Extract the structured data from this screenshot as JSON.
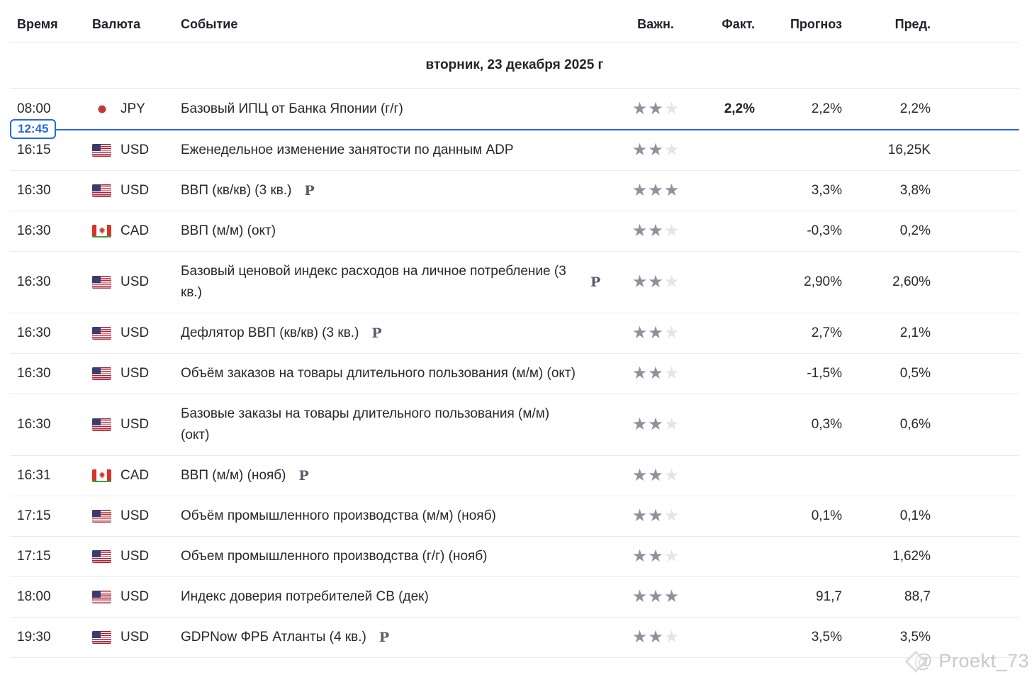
{
  "header": {
    "time": "Время",
    "currency": "Валюта",
    "event": "Событие",
    "importance": "Важн.",
    "actual": "Факт.",
    "forecast": "Прогноз",
    "previous": "Пред."
  },
  "date_header": "вторник, 23 декабря 2025 г",
  "time_marker": {
    "label": "12:45",
    "after_row": 1
  },
  "watermark": {
    "text": "@ Proekt_73"
  },
  "icons": {
    "preliminary": "P",
    "star": "★",
    "diamond": "watermark-diamond"
  },
  "colors": {
    "accent_blue": "#2368e4",
    "star_on": "#8d929c",
    "star_off": "#e3e5e9",
    "jpy_red": "#c4383d",
    "us_flag_red": "#b22234",
    "us_flag_blue": "#3c3b6e",
    "cad_red": "#d6342b",
    "cad_green": "#3f9e3f",
    "row_border": "#e8eaee",
    "text": "#24282f",
    "watermark_gray": "#c7c9cc"
  },
  "rows": [
    {
      "time": "08:00",
      "currency": "JPY",
      "flag": "jp",
      "event": "Базовый ИПЦ от Банка Японии (г/г)",
      "preliminary": false,
      "importance": 2,
      "actual": "2,2%",
      "forecast": "2,2%",
      "previous": "2,2%"
    },
    {
      "time": "16:15",
      "currency": "USD",
      "flag": "us",
      "event": "Еженедельное изменение занятости по данным ADP",
      "preliminary": false,
      "importance": 2,
      "actual": "",
      "forecast": "",
      "previous": "16,25K"
    },
    {
      "time": "16:30",
      "currency": "USD",
      "flag": "us",
      "event": "ВВП (кв/кв) (3 кв.)",
      "preliminary": true,
      "importance": 3,
      "actual": "",
      "forecast": "3,3%",
      "previous": "3,8%"
    },
    {
      "time": "16:30",
      "currency": "CAD",
      "flag": "ca",
      "event": "ВВП (м/м) (окт)",
      "preliminary": false,
      "importance": 2,
      "actual": "",
      "forecast": "-0,3%",
      "previous": "0,2%"
    },
    {
      "time": "16:30",
      "currency": "USD",
      "flag": "us",
      "event": "Базовый ценовой индекс расходов на личное потребление  (3 кв.)",
      "preliminary": true,
      "importance": 2,
      "actual": "",
      "forecast": "2,90%",
      "previous": "2,60%"
    },
    {
      "time": "16:30",
      "currency": "USD",
      "flag": "us",
      "event": "Дефлятор ВВП (кв/кв) (3 кв.)",
      "preliminary": true,
      "importance": 2,
      "actual": "",
      "forecast": "2,7%",
      "previous": "2,1%"
    },
    {
      "time": "16:30",
      "currency": "USD",
      "flag": "us",
      "event": "Объём заказов на товары длительного пользования (м/м) (окт)",
      "preliminary": false,
      "importance": 2,
      "actual": "",
      "forecast": "-1,5%",
      "previous": "0,5%"
    },
    {
      "time": "16:30",
      "currency": "USD",
      "flag": "us",
      "event": "Базовые заказы на товары длительного пользования (м/м) (окт)",
      "preliminary": false,
      "importance": 2,
      "actual": "",
      "forecast": "0,3%",
      "previous": "0,6%"
    },
    {
      "time": "16:31",
      "currency": "CAD",
      "flag": "ca",
      "event": "ВВП (м/м) (нояб)",
      "preliminary": true,
      "importance": 2,
      "actual": "",
      "forecast": "",
      "previous": ""
    },
    {
      "time": "17:15",
      "currency": "USD",
      "flag": "us",
      "event": "Объём промышленного производства (м/м) (нояб)",
      "preliminary": false,
      "importance": 2,
      "actual": "",
      "forecast": "0,1%",
      "previous": "0,1%"
    },
    {
      "time": "17:15",
      "currency": "USD",
      "flag": "us",
      "event": "Объем промышленного производства (г/г) (нояб)",
      "preliminary": false,
      "importance": 2,
      "actual": "",
      "forecast": "",
      "previous": "1,62%"
    },
    {
      "time": "18:00",
      "currency": "USD",
      "flag": "us",
      "event": "Индекс доверия потребителей CB  (дек)",
      "preliminary": false,
      "importance": 3,
      "actual": "",
      "forecast": "91,7",
      "previous": "88,7"
    },
    {
      "time": "19:30",
      "currency": "USD",
      "flag": "us",
      "event": "GDPNow ФРБ Атланты  (4 кв.)",
      "preliminary": true,
      "importance": 2,
      "actual": "",
      "forecast": "3,5%",
      "previous": "3,5%"
    }
  ]
}
